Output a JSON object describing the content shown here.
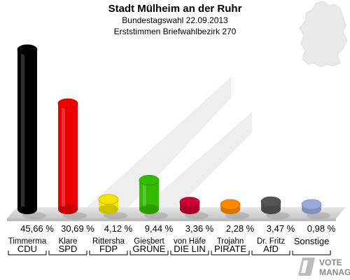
{
  "header": {
    "title": "Stadt Mülheim an der Ruhr",
    "subtitle": "Bundestagswahl 22.09.2013",
    "subtitle2": "Erststimmen Briefwahlbezirk 270"
  },
  "logo": {
    "text": "VOTE MANAGER",
    "line1": "VOTE",
    "line2": "MANAGER"
  },
  "chart_data": {
    "type": "bar",
    "title": "Stadt Mülheim an der Ruhr",
    "subtitle": "Bundestagswahl 22.09.2013 / Erststimmen Briefwahlbezirk 270",
    "categories": [
      "CDU",
      "SPD",
      "FDP",
      "GRÜNE",
      "DIE LIN",
      "PIRATE",
      "AfD",
      "Sonstige"
    ],
    "candidates": [
      "Timmerma",
      "Klare",
      "Rittersha",
      "Giesbert",
      "von Häfe",
      "Trojahn",
      "Dr. Fritz",
      ""
    ],
    "values": [
      45.66,
      30.69,
      4.12,
      9.44,
      3.36,
      2.28,
      3.47,
      0.98
    ],
    "value_labels": [
      "45,66 %",
      "30,69 %",
      "4,12 %",
      "9,44 %",
      "3,36 %",
      "2,28 %",
      "3,47 %",
      "0,98 %"
    ],
    "colors": [
      "#000000",
      "#ee0000",
      "#f5e400",
      "#33bb00",
      "#cc0033",
      "#ff8800",
      "#555555",
      "#99aadd"
    ],
    "ylim": [
      0,
      47
    ],
    "grid": false,
    "legend": "none"
  }
}
